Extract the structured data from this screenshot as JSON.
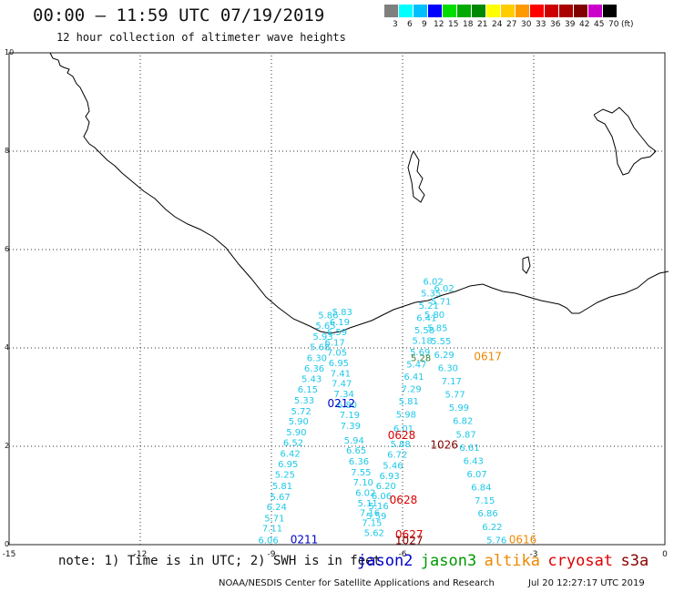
{
  "header": {
    "title": "00:00 – 11:59 UTC 07/19/2019",
    "subtitle": "12 hour collection of altimeter wave heights"
  },
  "colorbar": {
    "unit": "(ft)",
    "labels": [
      "3",
      "6",
      "9",
      "12",
      "15",
      "18",
      "21",
      "24",
      "27",
      "30",
      "33",
      "36",
      "39",
      "42",
      "45",
      "70"
    ],
    "colors": [
      "#7f7f7f",
      "#00ffff",
      "#00bfff",
      "#0000ff",
      "#00dd00",
      "#00aa00",
      "#008800",
      "#ffff00",
      "#ffcc00",
      "#ff9900",
      "#ff0000",
      "#cc0000",
      "#aa0000",
      "#800000",
      "#cc00cc",
      "#000000"
    ]
  },
  "axes": {
    "x_ticks": [
      "-15",
      "-12",
      "-9",
      "-6",
      "-3",
      "0"
    ],
    "y_ticks": [
      "0",
      "2",
      "4",
      "6",
      "8",
      "10"
    ]
  },
  "tracks": [
    {
      "color": "#1ec8e8",
      "points": [
        {
          "lon": -9.07,
          "lat": 0.03,
          "v": "6.06"
        },
        {
          "lon": -8.98,
          "lat": 0.27,
          "v": "7.11"
        },
        {
          "lon": -8.93,
          "lat": 0.47,
          "v": "5.71"
        },
        {
          "lon": -8.88,
          "lat": 0.7,
          "v": "6.24"
        },
        {
          "lon": -8.8,
          "lat": 0.91,
          "v": "5.67"
        },
        {
          "lon": -8.75,
          "lat": 1.13,
          "v": "5.81"
        },
        {
          "lon": -8.69,
          "lat": 1.36,
          "v": "5.25"
        },
        {
          "lon": -8.62,
          "lat": 1.57,
          "v": "6.95"
        },
        {
          "lon": -8.57,
          "lat": 1.79,
          "v": "6.42"
        },
        {
          "lon": -8.5,
          "lat": 2.01,
          "v": "6.52"
        },
        {
          "lon": -8.43,
          "lat": 2.22,
          "v": "5.90"
        },
        {
          "lon": -8.38,
          "lat": 2.44,
          "v": "5.90"
        },
        {
          "lon": -8.32,
          "lat": 2.65,
          "v": "5.72"
        },
        {
          "lon": -8.25,
          "lat": 2.87,
          "v": "5.33"
        },
        {
          "lon": -8.17,
          "lat": 3.09,
          "v": "6.15"
        },
        {
          "lon": -8.08,
          "lat": 3.31,
          "v": "5.43"
        },
        {
          "lon": -8.02,
          "lat": 3.52,
          "v": "6.36"
        },
        {
          "lon": -7.96,
          "lat": 3.73,
          "v": "6.30"
        },
        {
          "lon": -7.89,
          "lat": 3.95,
          "v": "5.68"
        },
        {
          "lon": -7.82,
          "lat": 4.17,
          "v": "5.93"
        },
        {
          "lon": -7.76,
          "lat": 4.39,
          "v": "5.65"
        },
        {
          "lon": -7.7,
          "lat": 4.6,
          "v": "5.86"
        }
      ]
    },
    {
      "color": "#1ec8e8",
      "points": [
        {
          "lon": -7.38,
          "lat": 4.67,
          "v": "5.83"
        },
        {
          "lon": -7.44,
          "lat": 4.46,
          "v": "6.19"
        },
        {
          "lon": -7.5,
          "lat": 4.26,
          "v": "6.59"
        },
        {
          "lon": -7.55,
          "lat": 4.05,
          "v": "6.17"
        },
        {
          "lon": -7.5,
          "lat": 3.84,
          "v": "7.05"
        },
        {
          "lon": -7.46,
          "lat": 3.63,
          "v": "6.95"
        },
        {
          "lon": -7.42,
          "lat": 3.42,
          "v": "7.41"
        },
        {
          "lon": -7.39,
          "lat": 3.21,
          "v": "7.47"
        },
        {
          "lon": -7.34,
          "lat": 3.0,
          "v": "7.34"
        },
        {
          "lon": -7.27,
          "lat": 2.78,
          "v": "6.80"
        },
        {
          "lon": -7.21,
          "lat": 2.57,
          "v": "7.19"
        },
        {
          "lon": -7.19,
          "lat": 2.35,
          "v": "7.39"
        },
        {
          "lon": -7.11,
          "lat": 2.06,
          "v": "5.94"
        },
        {
          "lon": -7.06,
          "lat": 1.85,
          "v": "6.65"
        },
        {
          "lon": -7.0,
          "lat": 1.63,
          "v": "6.36"
        },
        {
          "lon": -6.95,
          "lat": 1.41,
          "v": "7.55"
        },
        {
          "lon": -6.9,
          "lat": 1.2,
          "v": "7.10"
        },
        {
          "lon": -6.85,
          "lat": 0.99,
          "v": "6.02"
        },
        {
          "lon": -6.8,
          "lat": 0.78,
          "v": "5.11"
        },
        {
          "lon": -6.75,
          "lat": 0.58,
          "v": "7.16"
        },
        {
          "lon": -6.7,
          "lat": 0.38,
          "v": "7.15"
        },
        {
          "lon": -6.65,
          "lat": 0.18,
          "v": "5.62"
        }
      ]
    },
    {
      "color": "#1ec8e8",
      "points": [
        {
          "lon": -6.6,
          "lat": 0.52,
          "v": "5.59"
        },
        {
          "lon": -6.55,
          "lat": 0.72,
          "v": "5.16"
        },
        {
          "lon": -6.48,
          "lat": 0.93,
          "v": "6.06"
        },
        {
          "lon": -6.38,
          "lat": 1.13,
          "v": "6.20"
        },
        {
          "lon": -6.3,
          "lat": 1.33,
          "v": "6.93"
        },
        {
          "lon": -6.22,
          "lat": 1.55,
          "v": "5.46"
        },
        {
          "lon": -6.12,
          "lat": 1.77,
          "v": "6.72"
        },
        {
          "lon": -6.05,
          "lat": 1.98,
          "v": "5.88"
        },
        {
          "lon": -5.98,
          "lat": 2.3,
          "v": "6.01"
        },
        {
          "lon": -5.92,
          "lat": 2.58,
          "v": "5.98"
        },
        {
          "lon": -5.86,
          "lat": 2.85,
          "v": "5.81"
        },
        {
          "lon": -5.8,
          "lat": 3.1,
          "v": "7.29"
        },
        {
          "lon": -5.74,
          "lat": 3.35,
          "v": "6.41"
        },
        {
          "lon": -5.68,
          "lat": 3.6,
          "v": "5.47"
        },
        {
          "lon": -5.6,
          "lat": 3.85,
          "v": "5.69"
        },
        {
          "lon": -5.55,
          "lat": 4.08,
          "v": "5.18"
        },
        {
          "lon": -5.5,
          "lat": 4.3,
          "v": "5.58"
        },
        {
          "lon": -5.45,
          "lat": 4.55,
          "v": "6.41"
        },
        {
          "lon": -5.4,
          "lat": 4.8,
          "v": "5.21"
        },
        {
          "lon": -5.35,
          "lat": 5.05,
          "v": "5.35"
        },
        {
          "lon": -5.3,
          "lat": 5.29,
          "v": "6.02"
        }
      ]
    },
    {
      "color": "#1ec8e8",
      "points": [
        {
          "lon": -3.85,
          "lat": 0.03,
          "v": "5.76"
        },
        {
          "lon": -3.95,
          "lat": 0.3,
          "v": "6.22"
        },
        {
          "lon": -4.05,
          "lat": 0.57,
          "v": "6.86"
        },
        {
          "lon": -4.12,
          "lat": 0.83,
          "v": "7.15"
        },
        {
          "lon": -4.2,
          "lat": 1.1,
          "v": "6.84"
        },
        {
          "lon": -4.3,
          "lat": 1.37,
          "v": "6.07"
        },
        {
          "lon": -4.38,
          "lat": 1.64,
          "v": "6.43"
        },
        {
          "lon": -4.47,
          "lat": 1.91,
          "v": "6.61"
        },
        {
          "lon": -4.55,
          "lat": 2.18,
          "v": "5.87"
        },
        {
          "lon": -4.62,
          "lat": 2.45,
          "v": "6.82"
        },
        {
          "lon": -4.71,
          "lat": 2.72,
          "v": "5.99"
        },
        {
          "lon": -4.8,
          "lat": 2.99,
          "v": "5.77"
        },
        {
          "lon": -4.88,
          "lat": 3.26,
          "v": "7.17"
        },
        {
          "lon": -4.96,
          "lat": 3.53,
          "v": "6.30"
        },
        {
          "lon": -5.05,
          "lat": 3.8,
          "v": "6.29"
        },
        {
          "lon": -5.12,
          "lat": 4.07,
          "v": "5.55"
        },
        {
          "lon": -5.2,
          "lat": 4.34,
          "v": "5.85"
        },
        {
          "lon": -5.27,
          "lat": 4.61,
          "v": "5.80"
        },
        {
          "lon": -5.12,
          "lat": 4.88,
          "v": "5.71"
        },
        {
          "lon": -5.05,
          "lat": 5.15,
          "v": "6.02"
        }
      ]
    },
    {
      "color": "#2e7d32",
      "points": [
        {
          "lon": -5.58,
          "lat": 3.73,
          "v": "5.28"
        }
      ]
    }
  ],
  "passes": [
    {
      "label": "0211",
      "color": "#0000cc",
      "lon": -8.25,
      "lat": 0.03
    },
    {
      "label": "0212",
      "color": "#0000cc",
      "lon": -7.4,
      "lat": 2.8
    },
    {
      "label": "0617",
      "color": "#ee8800",
      "lon": -4.05,
      "lat": 3.75
    },
    {
      "label": "0616",
      "color": "#ee8800",
      "lon": -3.25,
      "lat": 0.03
    },
    {
      "label": "0628",
      "color": "#dd0000",
      "lon": -6.02,
      "lat": 2.15
    },
    {
      "label": "0628",
      "color": "#dd0000",
      "lon": -5.98,
      "lat": 0.83
    },
    {
      "label": "0627",
      "color": "#dd0000",
      "lon": -5.85,
      "lat": 0.13
    },
    {
      "label": "1027",
      "color": "#880000",
      "lon": -5.85,
      "lat": 0.01
    },
    {
      "label": "1026",
      "color": "#880000",
      "lon": -5.05,
      "lat": 1.95
    }
  ],
  "legend": {
    "note": "note: 1) Time is in UTC; 2) SWH is in feet",
    "satellites": [
      {
        "name": "jason2",
        "color": "#0000cc"
      },
      {
        "name": "jason3",
        "color": "#009900"
      },
      {
        "name": "altika",
        "color": "#ee8800"
      },
      {
        "name": "cryosat",
        "color": "#dd0000"
      },
      {
        "name": "s3a",
        "color": "#880000"
      }
    ]
  },
  "footer": {
    "credit": "NOAA/NESDIS Center for Satellite Applications and Research",
    "generated": "Jul 20 12:27:17 UTC 2019"
  }
}
